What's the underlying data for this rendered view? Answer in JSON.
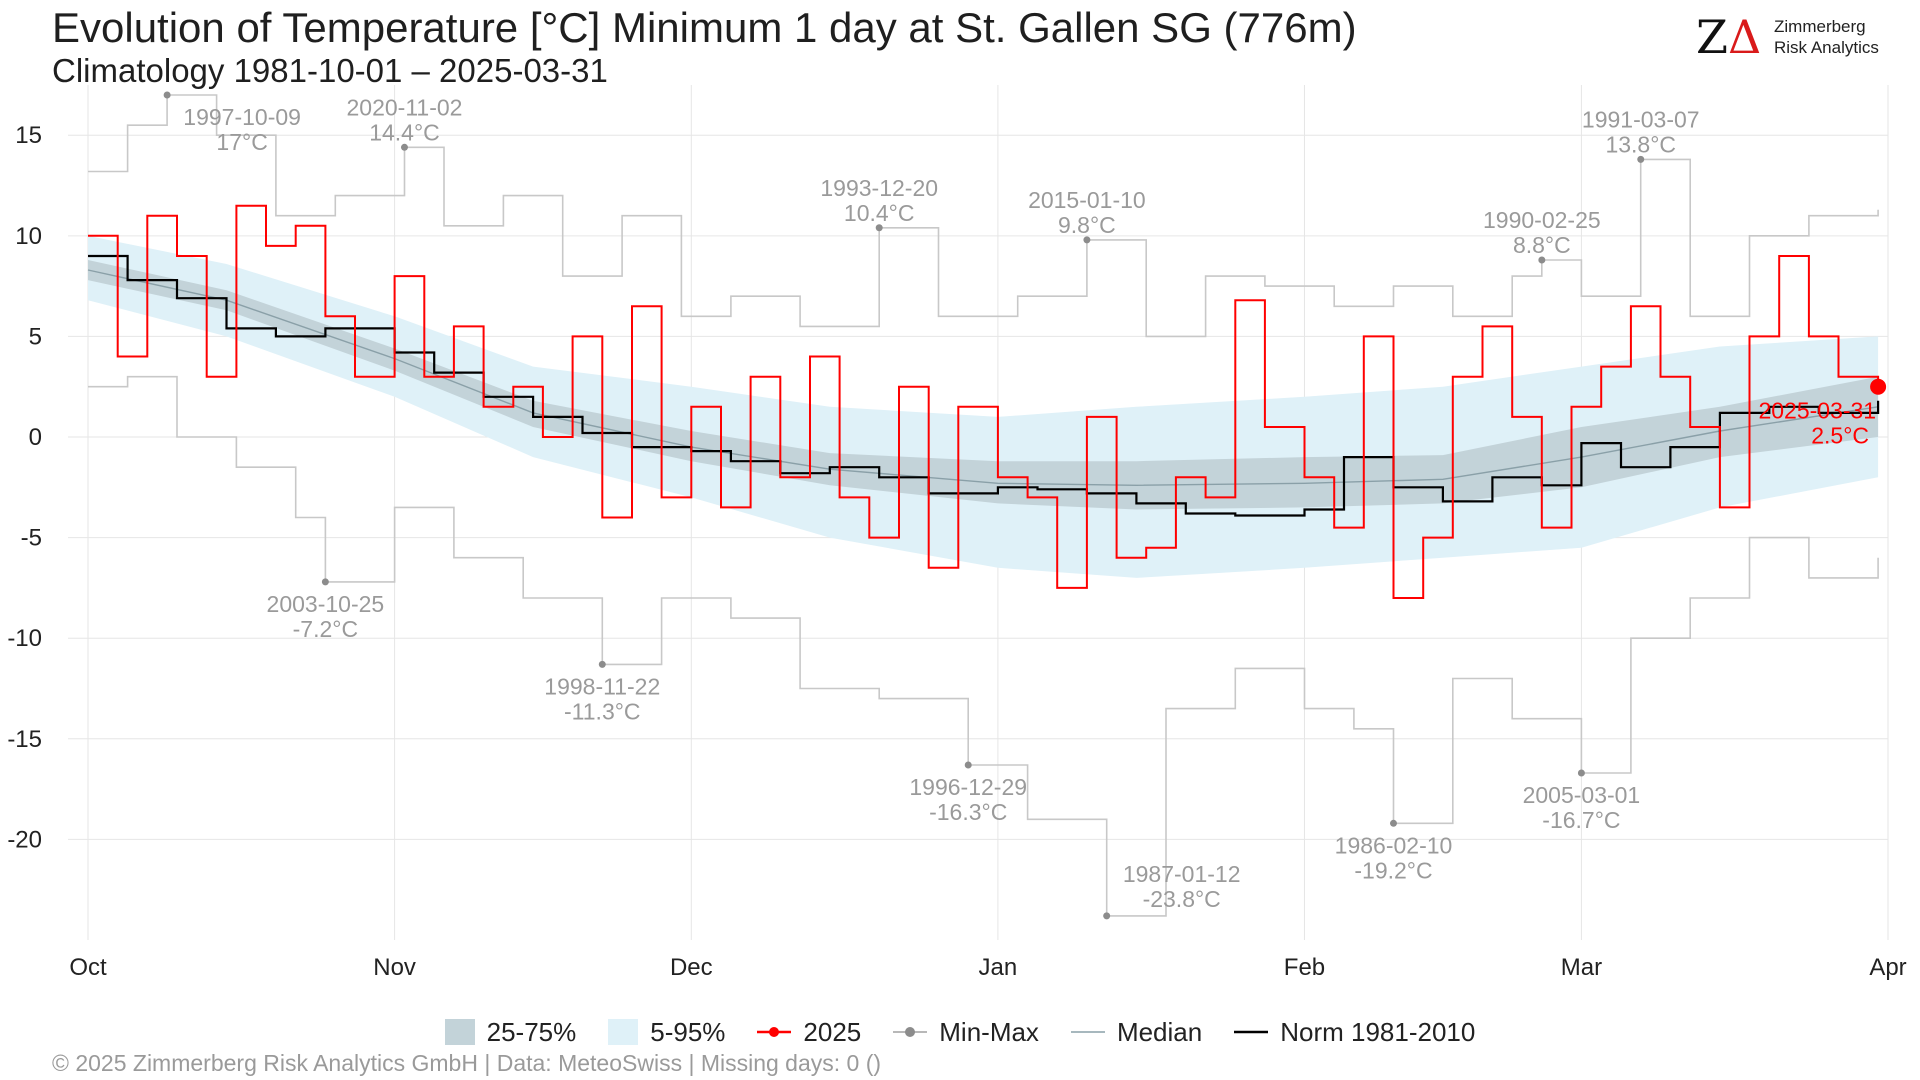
{
  "header": {
    "title": "Evolution of Temperature [°C] Minimum 1 day at St. Gallen  SG (776m)",
    "subtitle": "Climatology 1981-10-01 – 2025-03-31"
  },
  "logo": {
    "mark_z": "Z",
    "mark_delta": "Δ",
    "line1": "Zimmerberg",
    "line2": "Risk Analytics"
  },
  "footer": {
    "text": "©  2025 Zimmerberg Risk Analytics GmbH | Data: MeteoSwiss | Missing days: 0 ()"
  },
  "colors": {
    "band_25_75": "#c3d3d9",
    "band_5_95": "#dff1f8",
    "current": "#ff0000",
    "minmax": "#c8c8c8",
    "minmax_point": "#8c8c8c",
    "median": "#8aa0a8",
    "norm": "#000000",
    "grid": "#e6e6e6"
  },
  "legend": [
    {
      "key": "band-25-75",
      "label": "25-75%"
    },
    {
      "key": "band-5-95",
      "label": "5-95%"
    },
    {
      "key": "current",
      "label": "2025"
    },
    {
      "key": "minmax",
      "label": "Min-Max"
    },
    {
      "key": "median",
      "label": "Median"
    },
    {
      "key": "norm",
      "label": "Norm 1981-2010"
    }
  ],
  "chart_data": {
    "type": "line",
    "x_type": "date",
    "x_range": [
      "2024-10-01",
      "2025-03-31"
    ],
    "ylim": [
      -25,
      17
    ],
    "y_ticks": [
      -20,
      -15,
      -10,
      -5,
      0,
      5,
      10,
      15
    ],
    "x_tick_labels": [
      {
        "label": "Oct",
        "date": "2024-10-01"
      },
      {
        "label": "Nov",
        "date": "2024-11-01"
      },
      {
        "label": "Dec",
        "date": "2024-12-01"
      },
      {
        "label": "Jan",
        "date": "2025-01-01"
      },
      {
        "label": "Feb",
        "date": "2025-02-01"
      },
      {
        "label": "Mar",
        "date": "2025-03-01"
      },
      {
        "label": "Apr",
        "date": "2025-04-01"
      }
    ],
    "grid": true,
    "legend_position": "bottom",
    "bands": {
      "x": [
        "2024-10-01",
        "2024-10-15",
        "2024-11-01",
        "2024-11-15",
        "2024-12-01",
        "2024-12-15",
        "2025-01-01",
        "2025-01-15",
        "2025-02-01",
        "2025-02-15",
        "2025-03-01",
        "2025-03-15",
        "2025-03-31"
      ],
      "p5": [
        6.8,
        5.0,
        2.0,
        -1.0,
        -3.0,
        -5.0,
        -6.5,
        -7.0,
        -6.5,
        -6.0,
        -5.5,
        -3.5,
        -2.0
      ],
      "p25": [
        7.8,
        6.3,
        3.3,
        0.5,
        -1.2,
        -2.4,
        -3.3,
        -3.6,
        -3.5,
        -3.3,
        -2.5,
        -1.0,
        0.0
      ],
      "p75": [
        8.8,
        7.3,
        4.4,
        1.8,
        0.3,
        -0.8,
        -1.2,
        -1.2,
        -1.0,
        -0.9,
        0.5,
        1.5,
        3.0
      ],
      "p95": [
        10.0,
        8.6,
        6.0,
        3.5,
        2.5,
        1.5,
        1.0,
        1.5,
        2.0,
        2.5,
        3.5,
        4.5,
        5.0
      ]
    },
    "series": [
      {
        "name": "Median",
        "key": "median",
        "x": [
          "2024-10-01",
          "2024-10-15",
          "2024-11-01",
          "2024-11-15",
          "2024-12-01",
          "2024-12-15",
          "2025-01-01",
          "2025-01-15",
          "2025-02-01",
          "2025-02-15",
          "2025-03-01",
          "2025-03-15",
          "2025-03-31"
        ],
        "values": [
          8.3,
          6.8,
          3.9,
          1.2,
          -0.5,
          -1.6,
          -2.3,
          -2.4,
          -2.3,
          -2.1,
          -1.0,
          0.3,
          1.5
        ]
      },
      {
        "name": "Norm 1981-2010",
        "key": "norm",
        "x": [
          "2024-10-01",
          "2024-10-05",
          "2024-10-10",
          "2024-10-15",
          "2024-10-20",
          "2024-10-25",
          "2024-11-01",
          "2024-11-05",
          "2024-11-10",
          "2024-11-15",
          "2024-11-20",
          "2024-11-25",
          "2024-12-01",
          "2024-12-05",
          "2024-12-10",
          "2024-12-15",
          "2024-12-20",
          "2024-12-25",
          "2025-01-01",
          "2025-01-05",
          "2025-01-10",
          "2025-01-15",
          "2025-01-20",
          "2025-01-25",
          "2025-02-01",
          "2025-02-05",
          "2025-02-10",
          "2025-02-15",
          "2025-02-20",
          "2025-02-25",
          "2025-03-01",
          "2025-03-05",
          "2025-03-10",
          "2025-03-15",
          "2025-03-20",
          "2025-03-25",
          "2025-03-31"
        ],
        "values": [
          9.0,
          7.8,
          6.9,
          5.4,
          5.0,
          5.4,
          4.2,
          3.2,
          2.0,
          1.0,
          0.2,
          -0.5,
          -0.7,
          -1.2,
          -1.8,
          -1.5,
          -2.0,
          -2.8,
          -2.5,
          -2.6,
          -2.8,
          -3.3,
          -3.8,
          -3.9,
          -3.6,
          -1.0,
          -2.5,
          -3.2,
          -2.0,
          -2.4,
          -0.3,
          -1.5,
          -0.5,
          1.2,
          1.5,
          1.2,
          1.8
        ]
      },
      {
        "name": "2025",
        "key": "current",
        "x": [
          "2024-10-01",
          "2024-10-04",
          "2024-10-07",
          "2024-10-10",
          "2024-10-13",
          "2024-10-16",
          "2024-10-19",
          "2024-10-22",
          "2024-10-25",
          "2024-10-28",
          "2024-11-01",
          "2024-11-04",
          "2024-11-07",
          "2024-11-10",
          "2024-11-13",
          "2024-11-16",
          "2024-11-19",
          "2024-11-22",
          "2024-11-25",
          "2024-11-28",
          "2024-12-01",
          "2024-12-04",
          "2024-12-07",
          "2024-12-10",
          "2024-12-13",
          "2024-12-16",
          "2024-12-19",
          "2024-12-22",
          "2024-12-25",
          "2024-12-28",
          "2025-01-01",
          "2025-01-04",
          "2025-01-07",
          "2025-01-10",
          "2025-01-13",
          "2025-01-16",
          "2025-01-19",
          "2025-01-22",
          "2025-01-25",
          "2025-01-28",
          "2025-02-01",
          "2025-02-04",
          "2025-02-07",
          "2025-02-10",
          "2025-02-13",
          "2025-02-16",
          "2025-02-19",
          "2025-02-22",
          "2025-02-25",
          "2025-02-28",
          "2025-03-03",
          "2025-03-06",
          "2025-03-09",
          "2025-03-12",
          "2025-03-15",
          "2025-03-18",
          "2025-03-21",
          "2025-03-24",
          "2025-03-27",
          "2025-03-31"
        ],
        "values": [
          10.0,
          4.0,
          11.0,
          9.0,
          3.0,
          11.5,
          9.5,
          10.5,
          6.0,
          3.0,
          8.0,
          3.0,
          5.5,
          1.5,
          2.5,
          0.0,
          5.0,
          -4.0,
          6.5,
          -3.0,
          1.5,
          -3.5,
          3.0,
          -2.0,
          4.0,
          -3.0,
          -5.0,
          2.5,
          -6.5,
          1.5,
          -2.0,
          -3.0,
          -7.5,
          1.0,
          -6.0,
          -5.5,
          -2.0,
          -3.0,
          6.8,
          0.5,
          -2.0,
          -4.5,
          5.0,
          -8.0,
          -5.0,
          3.0,
          5.5,
          1.0,
          -4.5,
          1.5,
          3.5,
          6.5,
          3.0,
          0.5,
          -3.5,
          5.0,
          9.0,
          5.0,
          3.0,
          2.5
        ]
      },
      {
        "name": "Max",
        "key": "max",
        "x": [
          "2024-10-01",
          "2024-10-05",
          "2024-10-09",
          "2024-10-14",
          "2024-10-20",
          "2024-10-26",
          "2024-11-02",
          "2024-11-06",
          "2024-11-12",
          "2024-11-18",
          "2024-11-24",
          "2024-11-30",
          "2024-12-05",
          "2024-12-12",
          "2024-12-20",
          "2024-12-26",
          "2025-01-03",
          "2025-01-10",
          "2025-01-16",
          "2025-01-22",
          "2025-01-28",
          "2025-02-04",
          "2025-02-10",
          "2025-02-16",
          "2025-02-22",
          "2025-02-25",
          "2025-03-01",
          "2025-03-07",
          "2025-03-12",
          "2025-03-18",
          "2025-03-24",
          "2025-03-31"
        ],
        "values": [
          13.2,
          15.5,
          17.0,
          15.0,
          11.0,
          12.0,
          14.4,
          10.5,
          12.0,
          8.0,
          11.0,
          6.0,
          7.0,
          5.5,
          10.4,
          6.0,
          7.0,
          9.8,
          5.0,
          8.0,
          7.5,
          6.5,
          7.5,
          6.0,
          8.0,
          8.8,
          7.0,
          13.8,
          6.0,
          10.0,
          11.0,
          11.3
        ]
      },
      {
        "name": "Min",
        "key": "min",
        "x": [
          "2024-10-01",
          "2024-10-05",
          "2024-10-10",
          "2024-10-16",
          "2024-10-22",
          "2024-10-25",
          "2024-11-01",
          "2024-11-07",
          "2024-11-14",
          "2024-11-22",
          "2024-11-28",
          "2024-12-05",
          "2024-12-12",
          "2024-12-20",
          "2024-12-29",
          "2025-01-04",
          "2025-01-12",
          "2025-01-18",
          "2025-01-25",
          "2025-02-01",
          "2025-02-06",
          "2025-02-10",
          "2025-02-16",
          "2025-02-22",
          "2025-03-01",
          "2025-03-06",
          "2025-03-12",
          "2025-03-18",
          "2025-03-24",
          "2025-03-31"
        ],
        "values": [
          2.5,
          3.0,
          0.0,
          -1.5,
          -4.0,
          -7.2,
          -3.5,
          -6.0,
          -8.0,
          -11.3,
          -8.0,
          -9.0,
          -12.5,
          -13.0,
          -16.3,
          -19.0,
          -23.8,
          -13.5,
          -11.5,
          -13.5,
          -14.5,
          -19.2,
          -12.0,
          -14.0,
          -16.7,
          -10.0,
          -8.0,
          -5.0,
          -7.0,
          -6.0
        ]
      }
    ],
    "current_marker": {
      "date": "2025-03-31",
      "value": 2.5,
      "label_date": "2025-03-31",
      "label_value": "2.5°C"
    },
    "annotations": [
      {
        "date": "2024-10-09",
        "value": 17.0,
        "label_date": "1997-10-09",
        "label_value": "17°C",
        "position": "right-below"
      },
      {
        "date": "2024-11-02",
        "value": 14.4,
        "label_date": "2020-11-02",
        "label_value": "14.4°C",
        "position": "above"
      },
      {
        "date": "2024-12-20",
        "value": 10.4,
        "label_date": "1993-12-20",
        "label_value": "10.4°C",
        "position": "above"
      },
      {
        "date": "2025-01-10",
        "value": 9.8,
        "label_date": "2015-01-10",
        "label_value": "9.8°C",
        "position": "above"
      },
      {
        "date": "2025-02-25",
        "value": 8.8,
        "label_date": "1990-02-25",
        "label_value": "8.8°C",
        "position": "above"
      },
      {
        "date": "2025-03-07",
        "value": 13.8,
        "label_date": "1991-03-07",
        "label_value": "13.8°C",
        "position": "above"
      },
      {
        "date": "2024-10-25",
        "value": -7.2,
        "label_date": "2003-10-25",
        "label_value": "-7.2°C",
        "position": "below"
      },
      {
        "date": "2024-11-22",
        "value": -11.3,
        "label_date": "1998-11-22",
        "label_value": "-11.3°C",
        "position": "below"
      },
      {
        "date": "2024-12-29",
        "value": -16.3,
        "label_date": "1996-12-29",
        "label_value": "-16.3°C",
        "position": "below"
      },
      {
        "date": "2025-01-12",
        "value": -23.8,
        "label_date": "1987-01-12",
        "label_value": "-23.8°C",
        "position": "right-above"
      },
      {
        "date": "2025-02-10",
        "value": -19.2,
        "label_date": "1986-02-10",
        "label_value": "-19.2°C",
        "position": "below"
      },
      {
        "date": "2025-03-01",
        "value": -16.7,
        "label_date": "2005-03-01",
        "label_value": "-16.7°C",
        "position": "below"
      }
    ]
  }
}
